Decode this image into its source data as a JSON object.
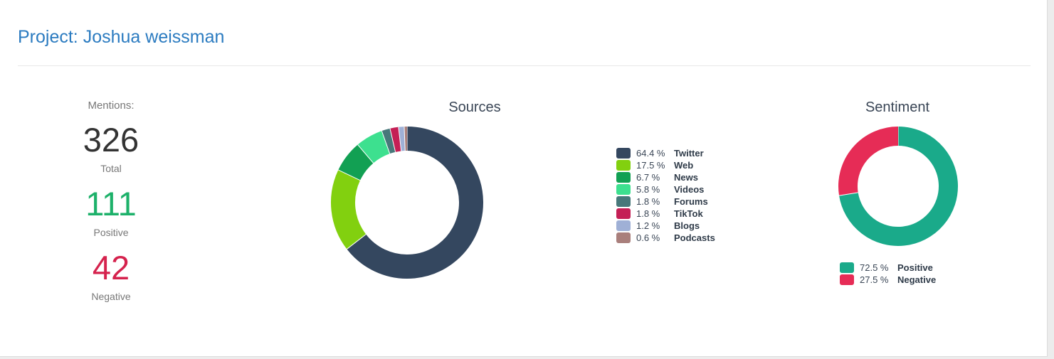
{
  "project": {
    "title": "Project: Joshua weissman"
  },
  "mentions": {
    "label": "Mentions:",
    "total": "326",
    "total_label": "Total",
    "positive": "111",
    "positive_label": "Positive",
    "negative": "42",
    "negative_label": "Negative"
  },
  "chart_data": [
    {
      "type": "pie",
      "title": "Sources",
      "categories": [
        "Twitter",
        "Web",
        "News",
        "Videos",
        "Forums",
        "TikTok",
        "Blogs",
        "Podcasts"
      ],
      "values": [
        64.4,
        17.5,
        6.7,
        5.8,
        1.8,
        1.8,
        1.2,
        0.6
      ],
      "labels": [
        "64.4 %",
        "17.5 %",
        "6.7 %",
        "5.8 %",
        "1.8 %",
        "1.8 %",
        "1.2 %",
        "0.6 %"
      ],
      "colors": [
        "#34475f",
        "#82d00f",
        "#12a053",
        "#3de08f",
        "#47787a",
        "#c41f55",
        "#9fb0d6",
        "#a97f7c"
      ],
      "legend": "right"
    },
    {
      "type": "pie",
      "title": "Sentiment",
      "categories": [
        "Positive",
        "Negative"
      ],
      "values": [
        72.5,
        27.5
      ],
      "labels": [
        "72.5 %",
        "27.5 %"
      ],
      "colors": [
        "#1aaa8a",
        "#e62c56"
      ],
      "legend": "bottom"
    }
  ]
}
